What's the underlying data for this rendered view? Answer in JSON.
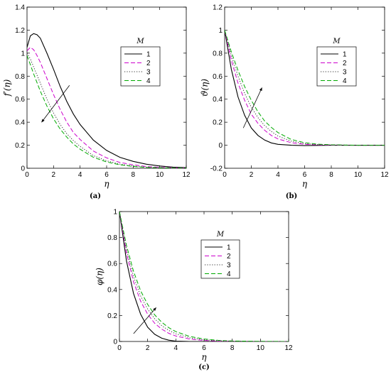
{
  "chart_data": [
    {
      "id": "a",
      "type": "line",
      "panel_label": "(a)",
      "xlabel": "η",
      "ylabel": "f′(η)",
      "xlim": [
        0,
        12
      ],
      "ylim": [
        0,
        1.4
      ],
      "xticks": [
        0,
        2,
        4,
        6,
        8,
        10,
        12
      ],
      "yticks": [
        0,
        0.2,
        0.4,
        0.6,
        0.8,
        1,
        1.2,
        1.4
      ],
      "legend_title": "M",
      "legend_position": "upper-middle-right",
      "arrow": {
        "from": [
          3.2,
          0.72
        ],
        "to": [
          1.1,
          0.4
        ]
      },
      "series": [
        {
          "name": "1",
          "color": "#000000",
          "dash": "solid",
          "x": [
            0,
            0.25,
            0.5,
            0.75,
            1,
            1.5,
            2,
            2.5,
            3,
            3.5,
            4,
            5,
            6,
            7,
            8,
            9,
            10,
            11,
            12
          ],
          "y": [
            1.05,
            1.15,
            1.17,
            1.16,
            1.13,
            1.0,
            0.86,
            0.71,
            0.58,
            0.47,
            0.38,
            0.245,
            0.155,
            0.095,
            0.06,
            0.035,
            0.02,
            0.01,
            0.005
          ]
        },
        {
          "name": "2",
          "color": "#cc00cc",
          "dash": "dashed",
          "x": [
            0,
            0.25,
            0.5,
            0.75,
            1,
            1.5,
            2,
            2.5,
            3,
            3.5,
            4,
            5,
            6,
            7,
            8,
            9,
            10,
            11,
            12
          ],
          "y": [
            1.02,
            1.05,
            1.03,
            0.98,
            0.92,
            0.78,
            0.64,
            0.51,
            0.4,
            0.31,
            0.25,
            0.15,
            0.09,
            0.05,
            0.03,
            0.015,
            0.008,
            0.004,
            0.002
          ]
        },
        {
          "name": "3",
          "color": "#333333",
          "dash": "dotted",
          "x": [
            0,
            0.25,
            0.5,
            1,
            1.5,
            2,
            2.5,
            3,
            3.5,
            4,
            5,
            6,
            7,
            8,
            9,
            10,
            11,
            12
          ],
          "y": [
            1.0,
            0.95,
            0.88,
            0.74,
            0.6,
            0.48,
            0.38,
            0.3,
            0.24,
            0.19,
            0.11,
            0.065,
            0.035,
            0.02,
            0.01,
            0.005,
            0.002,
            0.001
          ]
        },
        {
          "name": "4",
          "color": "#00aa00",
          "dash": "dashed",
          "x": [
            0,
            0.25,
            0.5,
            1,
            1.5,
            2,
            2.5,
            3,
            3.5,
            4,
            5,
            6,
            7,
            8,
            9,
            10,
            11,
            12
          ],
          "y": [
            0.98,
            0.9,
            0.82,
            0.67,
            0.54,
            0.43,
            0.34,
            0.27,
            0.21,
            0.165,
            0.095,
            0.055,
            0.03,
            0.016,
            0.008,
            0.004,
            0.002,
            0.001
          ]
        }
      ]
    },
    {
      "id": "b",
      "type": "line",
      "panel_label": "(b)",
      "xlabel": "η",
      "ylabel": "ϑ(η)",
      "xlim": [
        0,
        12
      ],
      "ylim": [
        -0.2,
        1.2
      ],
      "xticks": [
        0,
        2,
        4,
        6,
        8,
        10,
        12
      ],
      "yticks": [
        -0.2,
        0,
        0.2,
        0.4,
        0.6,
        0.8,
        1,
        1.2
      ],
      "legend_title": "M",
      "legend_position": "upper-middle-right",
      "arrow": {
        "from": [
          1.4,
          0.15
        ],
        "to": [
          2.8,
          0.5
        ]
      },
      "series": [
        {
          "name": "1",
          "color": "#000000",
          "dash": "solid",
          "x": [
            0,
            0.5,
            1,
            1.5,
            2,
            2.5,
            3,
            3.5,
            4,
            5,
            6,
            8,
            10,
            12
          ],
          "y": [
            1.0,
            0.66,
            0.42,
            0.26,
            0.15,
            0.085,
            0.045,
            0.02,
            0.008,
            0.0,
            -0.003,
            0,
            0,
            0
          ]
        },
        {
          "name": "2",
          "color": "#cc00cc",
          "dash": "dashed",
          "x": [
            0,
            0.5,
            1,
            1.5,
            2,
            2.5,
            3,
            3.5,
            4,
            5,
            6,
            7,
            8,
            10,
            12
          ],
          "y": [
            1.0,
            0.74,
            0.54,
            0.39,
            0.27,
            0.19,
            0.13,
            0.085,
            0.055,
            0.022,
            0.008,
            0.003,
            0.001,
            0,
            0
          ]
        },
        {
          "name": "3",
          "color": "#333333",
          "dash": "dotted",
          "x": [
            0,
            0.5,
            1,
            1.5,
            2,
            2.5,
            3,
            3.5,
            4,
            5,
            6,
            7,
            8,
            10,
            12
          ],
          "y": [
            1.0,
            0.78,
            0.6,
            0.45,
            0.33,
            0.24,
            0.17,
            0.12,
            0.08,
            0.035,
            0.014,
            0.005,
            0.002,
            0,
            0
          ]
        },
        {
          "name": "4",
          "color": "#00aa00",
          "dash": "dashed",
          "x": [
            0,
            0.5,
            1,
            1.5,
            2,
            2.5,
            3,
            3.5,
            4,
            5,
            6,
            7,
            8,
            10,
            12
          ],
          "y": [
            1.0,
            0.81,
            0.65,
            0.51,
            0.39,
            0.29,
            0.21,
            0.155,
            0.11,
            0.05,
            0.022,
            0.009,
            0.004,
            0,
            0
          ]
        }
      ]
    },
    {
      "id": "c",
      "type": "line",
      "panel_label": "(c)",
      "xlabel": "η",
      "ylabel": "φ(η)",
      "xlim": [
        0,
        12
      ],
      "ylim": [
        0,
        1
      ],
      "xticks": [
        0,
        2,
        4,
        6,
        8,
        10,
        12
      ],
      "yticks": [
        0,
        0.2,
        0.4,
        0.6,
        0.8,
        1
      ],
      "legend_title": "M",
      "legend_position": "upper-middle-right",
      "arrow": {
        "from": [
          1.0,
          0.06
        ],
        "to": [
          2.6,
          0.26
        ]
      },
      "series": [
        {
          "name": "1",
          "color": "#000000",
          "dash": "solid",
          "x": [
            0,
            0.5,
            1,
            1.5,
            2,
            2.5,
            3,
            3.5,
            4,
            5,
            6,
            8,
            10,
            12
          ],
          "y": [
            1.0,
            0.62,
            0.37,
            0.21,
            0.11,
            0.055,
            0.025,
            0.01,
            0.003,
            0,
            0,
            0,
            0,
            0
          ]
        },
        {
          "name": "2",
          "color": "#cc00cc",
          "dash": "dashed",
          "x": [
            0,
            0.5,
            1,
            1.5,
            2,
            2.5,
            3,
            3.5,
            4,
            5,
            6,
            7,
            8,
            10,
            12
          ],
          "y": [
            1.0,
            0.68,
            0.46,
            0.31,
            0.21,
            0.14,
            0.095,
            0.063,
            0.042,
            0.018,
            0.008,
            0.003,
            0.001,
            0,
            0
          ]
        },
        {
          "name": "3",
          "color": "#333333",
          "dash": "dotted",
          "x": [
            0,
            0.5,
            1,
            1.5,
            2,
            2.5,
            3,
            3.5,
            4,
            5,
            6,
            7,
            8,
            10,
            12
          ],
          "y": [
            1.0,
            0.71,
            0.5,
            0.35,
            0.25,
            0.175,
            0.122,
            0.085,
            0.059,
            0.028,
            0.013,
            0.006,
            0.003,
            0,
            0
          ]
        },
        {
          "name": "4",
          "color": "#00aa00",
          "dash": "dashed",
          "x": [
            0,
            0.5,
            1,
            1.5,
            2,
            2.5,
            3,
            3.5,
            4,
            5,
            6,
            7,
            8,
            10,
            12
          ],
          "y": [
            1.0,
            0.74,
            0.54,
            0.39,
            0.285,
            0.205,
            0.148,
            0.106,
            0.076,
            0.038,
            0.019,
            0.009,
            0.004,
            0.001,
            0
          ]
        }
      ]
    }
  ]
}
